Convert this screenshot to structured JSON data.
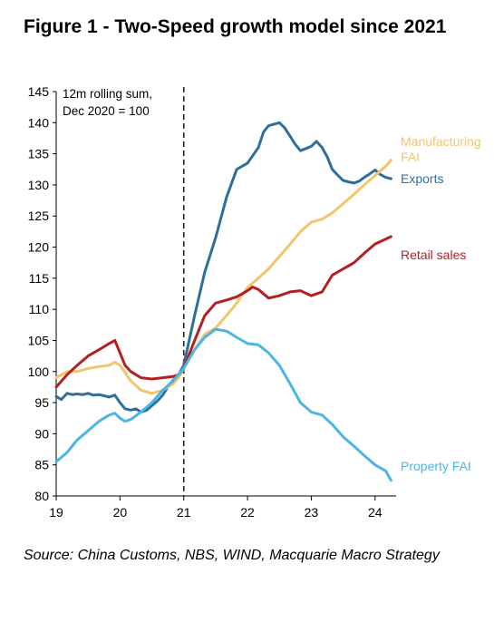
{
  "title": "Figure 1 - Two-Speed growth model since 2021",
  "source": "Source: China Customs, NBS, WIND, Macquarie Macro Strategy",
  "chart_data": {
    "type": "line",
    "annotation": [
      "12m rolling sum,",
      "Dec 2020 = 100"
    ],
    "xlim": [
      19,
      24.33
    ],
    "ylim": [
      80,
      145
    ],
    "x_ticks": [
      19,
      20,
      21,
      22,
      23,
      24
    ],
    "x_tick_labels": [
      "19",
      "20",
      "21",
      "22",
      "23",
      "24"
    ],
    "y_ticks": [
      80,
      85,
      90,
      95,
      100,
      105,
      110,
      115,
      120,
      125,
      130,
      135,
      140,
      145
    ],
    "vline_x": 21,
    "grid": false,
    "legend": "direct labels at line ends",
    "series": [
      {
        "name": "Exports",
        "color": "#2e6f9a",
        "label_lines": [
          "Exports"
        ],
        "x": [
          19.0,
          19.08,
          19.17,
          19.25,
          19.33,
          19.42,
          19.5,
          19.58,
          19.67,
          19.75,
          19.83,
          19.92,
          20.0,
          20.08,
          20.17,
          20.25,
          20.33,
          20.42,
          20.5,
          20.58,
          20.67,
          20.75,
          20.83,
          20.92,
          21.0,
          21.17,
          21.33,
          21.5,
          21.67,
          21.83,
          22.0,
          22.17,
          22.25,
          22.33,
          22.5,
          22.58,
          22.67,
          22.75,
          22.83,
          23.0,
          23.08,
          23.17,
          23.25,
          23.33,
          23.42,
          23.5,
          23.58,
          23.67,
          23.75,
          23.83,
          23.92,
          24.0,
          24.08,
          24.17,
          24.25
        ],
        "y": [
          96,
          95.5,
          96.5,
          96.3,
          96.4,
          96.3,
          96.5,
          96.2,
          96.3,
          96.1,
          95.9,
          96.2,
          95,
          94,
          93.8,
          94,
          93.5,
          93.8,
          94.5,
          95.2,
          96.2,
          97.5,
          98.6,
          99.5,
          101,
          109,
          116,
          121.5,
          128,
          132.5,
          133.5,
          136,
          138.5,
          139.5,
          140,
          139.2,
          137.8,
          136.5,
          135.5,
          136.2,
          137,
          136,
          134.5,
          132.5,
          131.5,
          130.7,
          130.5,
          130.3,
          130.6,
          131.2,
          131.8,
          132.4,
          131.7,
          131.2,
          131
        ]
      },
      {
        "name": "Manufacturing FAI",
        "color": "#f3c56b",
        "label_lines": [
          "Manufacturing",
          "FAI"
        ],
        "x": [
          19.0,
          19.17,
          19.33,
          19.5,
          19.67,
          19.83,
          19.92,
          20.0,
          20.17,
          20.33,
          20.5,
          20.67,
          20.83,
          20.92,
          21.0,
          21.17,
          21.33,
          21.5,
          21.67,
          21.83,
          22.0,
          22.17,
          22.33,
          22.5,
          22.67,
          22.83,
          23.0,
          23.17,
          23.33,
          23.5,
          23.67,
          23.83,
          24.0,
          24.17,
          24.25
        ],
        "y": [
          99,
          100,
          100,
          100.5,
          100.8,
          101,
          101.5,
          101,
          98.5,
          97,
          96.5,
          97,
          98,
          99,
          100.5,
          103.5,
          106,
          107,
          109,
          111,
          113.5,
          115,
          116.5,
          118.5,
          120.5,
          122.5,
          124,
          124.5,
          125.5,
          127,
          128.5,
          130,
          131.5,
          133,
          134
        ]
      },
      {
        "name": "Retail sales",
        "color": "#b22025",
        "label_lines": [
          "Retail sales"
        ],
        "x": [
          19.0,
          19.17,
          19.33,
          19.5,
          19.67,
          19.83,
          19.92,
          20.0,
          20.08,
          20.17,
          20.33,
          20.5,
          20.67,
          20.83,
          20.92,
          21.0,
          21.17,
          21.33,
          21.5,
          21.67,
          21.83,
          22.0,
          22.08,
          22.17,
          22.33,
          22.5,
          22.67,
          22.83,
          23.0,
          23.17,
          23.33,
          23.5,
          23.67,
          23.83,
          24.0,
          24.17,
          24.25
        ],
        "y": [
          97.5,
          99.5,
          101,
          102.5,
          103.5,
          104.5,
          105,
          103,
          101,
          100,
          99,
          98.8,
          99,
          99.2,
          99.5,
          100.5,
          105,
          109,
          111,
          111.5,
          112,
          113,
          113.6,
          113.2,
          111.8,
          112.2,
          112.8,
          113,
          112.2,
          112.8,
          115.5,
          116.5,
          117.5,
          119,
          120.5,
          121.3,
          121.7
        ]
      },
      {
        "name": "Property FAI",
        "color": "#4cb5e3",
        "label_lines": [
          "Property FAI"
        ],
        "x": [
          19.0,
          19.17,
          19.33,
          19.5,
          19.67,
          19.83,
          19.92,
          20.0,
          20.08,
          20.17,
          20.33,
          20.5,
          20.67,
          20.83,
          21.0,
          21.17,
          21.33,
          21.5,
          21.67,
          21.83,
          22.0,
          22.17,
          22.33,
          22.5,
          22.67,
          22.83,
          23.0,
          23.17,
          23.33,
          23.5,
          23.67,
          23.83,
          24.0,
          24.17,
          24.25
        ],
        "y": [
          85.5,
          87,
          89,
          90.5,
          92,
          93,
          93.3,
          92.5,
          92,
          92.3,
          93.5,
          95,
          97,
          98.5,
          100.5,
          103.5,
          105.5,
          106.8,
          106.5,
          105.5,
          104.5,
          104.3,
          103,
          101,
          98,
          95,
          93.5,
          93,
          91.5,
          89.5,
          88,
          86.5,
          85,
          84,
          82.5
        ]
      }
    ]
  }
}
